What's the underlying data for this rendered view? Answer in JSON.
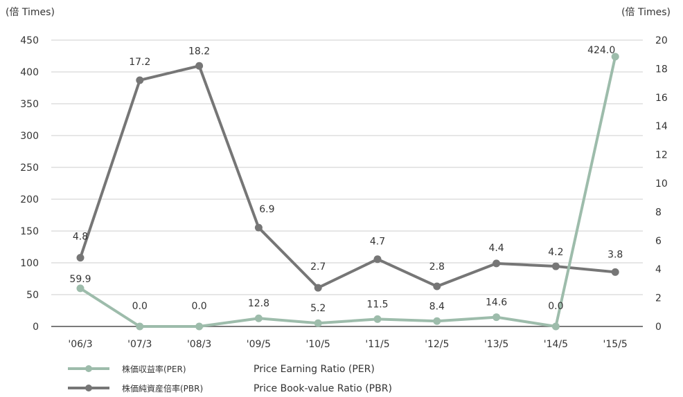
{
  "chart_data": {
    "type": "line",
    "left_axis_unit": "(倍 Times)",
    "right_axis_unit": "(倍 Times)",
    "categories": [
      "'06/3",
      "'07/3",
      "'08/3",
      "'09/5",
      "'10/5",
      "'11/5",
      "'12/5",
      "'13/5",
      "'14/5",
      "'15/5"
    ],
    "y_left": {
      "min": 0,
      "max": 450,
      "step": 50
    },
    "y_right": {
      "min": 0,
      "max": 20,
      "step": 2
    },
    "grid": true,
    "legend_position": "bottom-left",
    "series": [
      {
        "name": "株価収益率(PER)",
        "name_en": "Price Earning Ratio (PER)",
        "axis": "left",
        "color": "#9dbcab",
        "values": [
          59.9,
          0.0,
          0.0,
          12.8,
          5.2,
          11.5,
          8.4,
          14.6,
          0.0,
          424.0
        ],
        "labels": [
          "59.9",
          "0.0",
          "0.0",
          "12.8",
          "5.2",
          "11.5",
          "8.4",
          "14.6",
          "0.0",
          "424.0"
        ]
      },
      {
        "name": "株価純資産倍率(PBR)",
        "name_en": "Price Book-value Ratio (PBR)",
        "axis": "right",
        "color": "#767676",
        "values": [
          4.8,
          17.2,
          18.2,
          6.9,
          2.7,
          4.7,
          2.8,
          4.4,
          4.2,
          3.8
        ],
        "labels": [
          "4.8",
          "17.2",
          "18.2",
          "6.9",
          "2.7",
          "4.7",
          "2.8",
          "4.4",
          "4.2",
          "3.8"
        ]
      }
    ]
  }
}
